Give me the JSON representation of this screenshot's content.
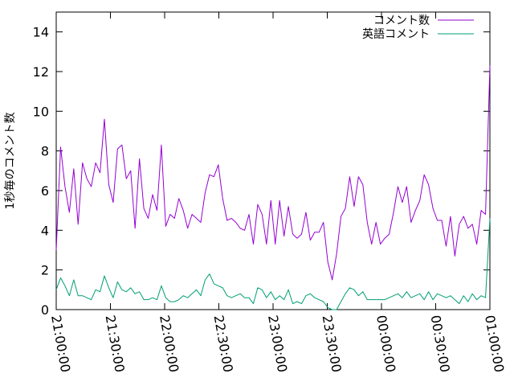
{
  "chart_data": {
    "type": "line",
    "title": "",
    "xlabel": "",
    "ylabel": "1秒毎のコメント数",
    "ylim": [
      0,
      15
    ],
    "xlim": [
      "21:00:00",
      "01:00:00"
    ],
    "grid": false,
    "legend_position": "top-right",
    "y_ticks": [
      0,
      2,
      4,
      6,
      8,
      10,
      12,
      14
    ],
    "y_tick_labels": [
      "0",
      "2",
      "4",
      "6",
      "8",
      "10",
      "12",
      "14"
    ],
    "x_tick_labels": [
      "21:00:00",
      "21:30:00",
      "22:00:00",
      "22:30:00",
      "23:00:00",
      "23:30:00",
      "00:00:00",
      "00:30:00",
      "01:00:00"
    ],
    "series": [
      {
        "name": "コメント数",
        "color": "#9400d3",
        "values": [
          3.0,
          8.2,
          6.2,
          4.9,
          7.1,
          4.3,
          7.4,
          6.6,
          6.2,
          7.4,
          6.9,
          9.6,
          6.3,
          5.4,
          8.1,
          8.3,
          6.6,
          7.0,
          4.1,
          7.6,
          5.1,
          4.6,
          5.8,
          5.0,
          8.3,
          4.2,
          4.8,
          4.6,
          5.6,
          5.0,
          4.1,
          4.8,
          4.6,
          4.4,
          5.9,
          6.8,
          6.7,
          7.3,
          5.6,
          4.5,
          4.6,
          4.4,
          4.1,
          4.0,
          4.8,
          3.3,
          5.3,
          4.8,
          3.3,
          5.5,
          3.3,
          5.5,
          3.7,
          5.2,
          3.8,
          3.6,
          3.8,
          4.9,
          3.5,
          3.9,
          3.9,
          4.4,
          2.4,
          1.5,
          2.8,
          4.7,
          5.1,
          6.7,
          5.2,
          6.7,
          6.3,
          4.4,
          3.3,
          4.4,
          3.3,
          3.6,
          3.8,
          4.9,
          6.2,
          5.4,
          6.2,
          4.4,
          5.0,
          5.5,
          6.8,
          6.3,
          5.1,
          4.5,
          4.5,
          3.2,
          4.7,
          2.7,
          4.3,
          4.7,
          4.1,
          4.3,
          3.3,
          5.0,
          4.8,
          12.3
        ]
      },
      {
        "name": "英語コメント",
        "color": "#009e73",
        "values": [
          1.0,
          1.6,
          1.2,
          0.7,
          1.5,
          0.7,
          0.7,
          0.6,
          0.5,
          1.0,
          0.9,
          1.7,
          1.1,
          0.6,
          1.4,
          1.0,
          0.9,
          1.1,
          0.8,
          0.9,
          0.5,
          0.5,
          0.6,
          0.5,
          1.2,
          0.6,
          0.4,
          0.4,
          0.5,
          0.7,
          0.6,
          0.8,
          1.0,
          0.7,
          1.5,
          1.8,
          1.3,
          1.2,
          1.1,
          0.7,
          0.6,
          0.7,
          0.8,
          0.6,
          0.6,
          0.3,
          1.1,
          1.0,
          0.6,
          0.9,
          0.5,
          0.7,
          0.5,
          1.0,
          0.3,
          0.4,
          0.3,
          0.7,
          0.8,
          0.6,
          0.5,
          0.4,
          0.1,
          0.0,
          0.0,
          0.4,
          0.8,
          1.1,
          1.0,
          0.7,
          0.9,
          0.5,
          0.5,
          0.5,
          0.5,
          0.5,
          0.6,
          0.7,
          0.8,
          0.6,
          0.9,
          0.6,
          0.7,
          0.8,
          0.5,
          0.9,
          0.5,
          0.8,
          0.7,
          0.6,
          0.7,
          0.5,
          0.3,
          0.7,
          0.4,
          0.8,
          0.5,
          0.7,
          0.6,
          4.6
        ]
      }
    ]
  }
}
